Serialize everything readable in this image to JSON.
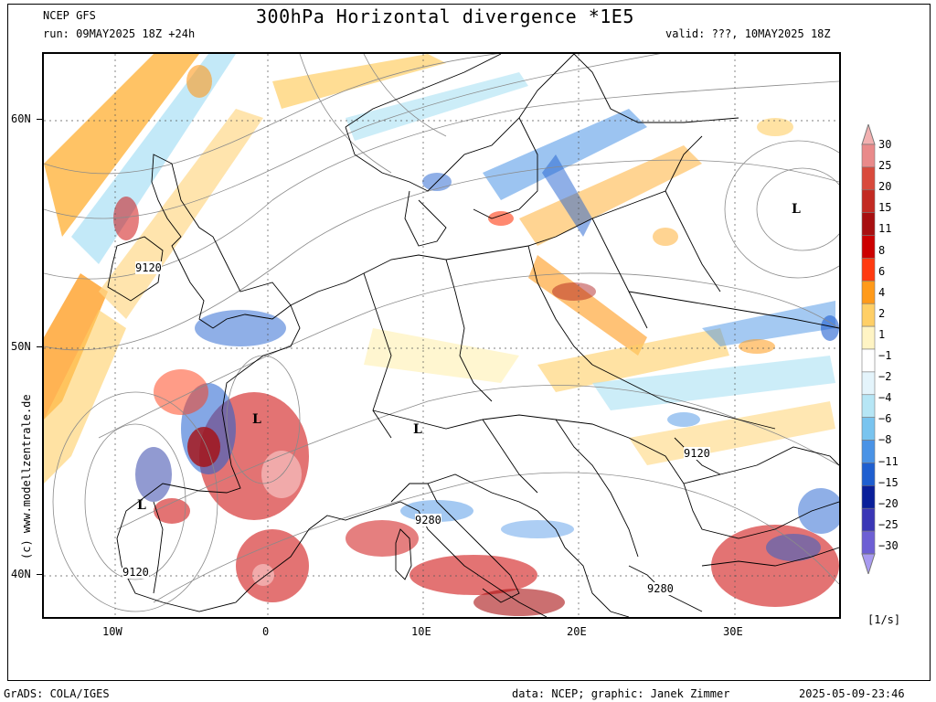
{
  "header": {
    "model": "NCEP GFS",
    "title": "300hPa Horizontal divergence *1E5",
    "run": "run: 09MAY2025 18Z +24h",
    "valid": "valid: ???, 10MAY2025 18Z"
  },
  "map": {
    "lat_labels": [
      "60N",
      "50N",
      "40N"
    ],
    "lon_labels": [
      "10W",
      "0",
      "10E",
      "20E",
      "30E"
    ],
    "contour_labels": [
      "9120",
      "9120",
      "9120",
      "9280",
      "9280"
    ],
    "low_markers": [
      "L",
      "L",
      "L",
      "L"
    ]
  },
  "colorbar": {
    "labels": [
      "30",
      "25",
      "20",
      "15",
      "11",
      "8",
      "6",
      "4",
      "2",
      "1",
      "-1",
      "-2",
      "-4",
      "-6",
      "-8",
      "-11",
      "-15",
      "-20",
      "-25",
      "-30"
    ],
    "colors": [
      "#f2b0b0",
      "#e98a8a",
      "#d94a3c",
      "#c32a22",
      "#a80f10",
      "#cc0000",
      "#ff3a10",
      "#ff9a1a",
      "#ffcf66",
      "#fff4c4",
      "#ffffff",
      "#e4f4fb",
      "#b6e6f5",
      "#79c4ef",
      "#4a93e6",
      "#1f5fd0",
      "#0a1f9a",
      "#3a36b6",
      "#6d5fd4",
      "#a89af0"
    ],
    "unit": "[1/s]"
  },
  "footer": {
    "left": "GrADS: COLA/IGES",
    "credit": "data: NCEP; graphic: Janek Zimmer",
    "timestamp": "2025-05-09-23:46",
    "watermark": "(c)  www.modellzentrale.de"
  }
}
